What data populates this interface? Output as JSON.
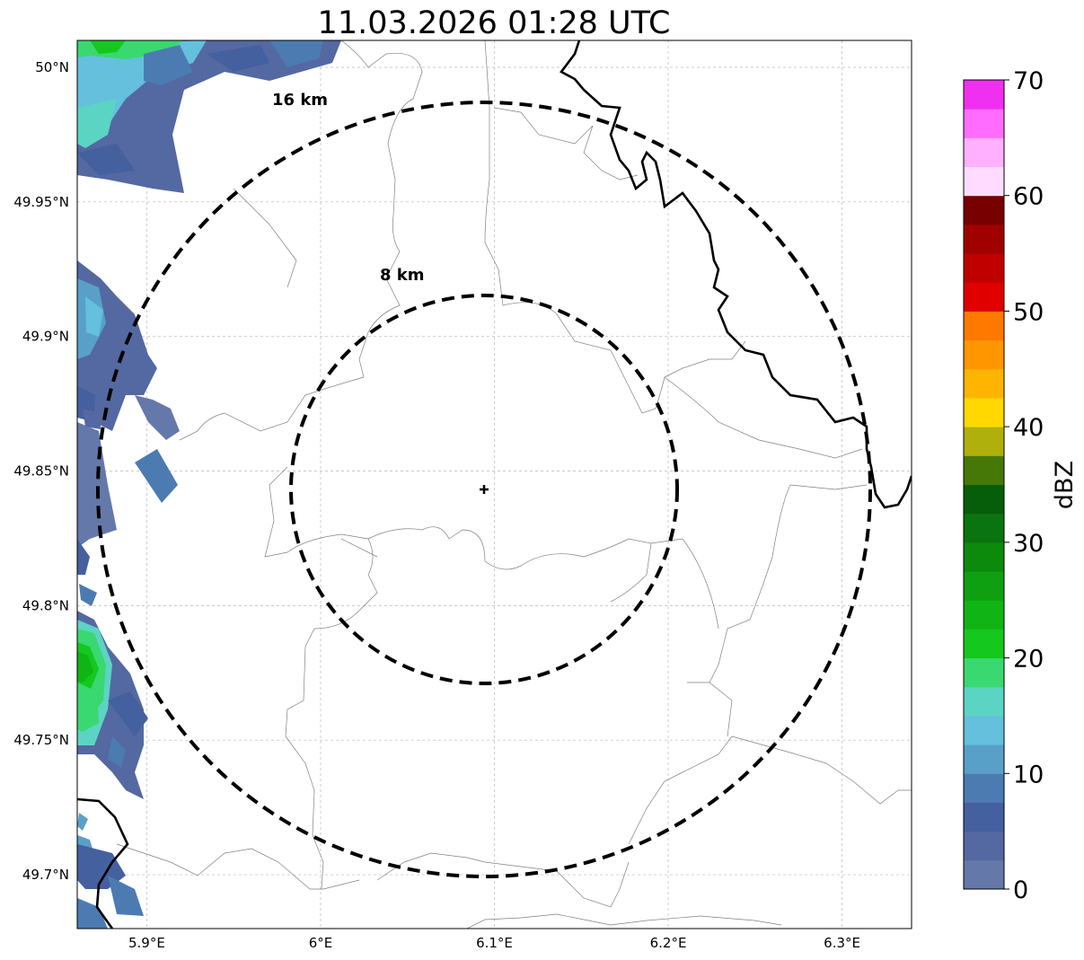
{
  "map": {
    "title": "11.03.2026 01:28 UTC",
    "lon_ticks": [
      "5.9°E",
      "6°E",
      "6.1°E",
      "6.2°E",
      "6.3°E"
    ],
    "lat_ticks": [
      "50°N",
      "49.95°N",
      "49.9°N",
      "49.85°N",
      "49.8°N",
      "49.75°N",
      "49.7°N"
    ],
    "extent": {
      "lon": [
        5.86,
        6.34
      ],
      "lat": [
        49.68,
        50.01
      ]
    },
    "radar_site": {
      "lon": 6.095,
      "lat": 49.843
    },
    "rings": [
      {
        "label": "8 km",
        "radius_km": 8
      },
      {
        "label": "16 km",
        "radius_km": 16
      }
    ],
    "grid": true
  },
  "colorbar": {
    "label": "dBZ",
    "ticks": [
      "0",
      "10",
      "20",
      "30",
      "40",
      "50",
      "60",
      "70"
    ],
    "range": [
      0,
      70
    ],
    "step": 2.5,
    "colors": [
      "#6478aa",
      "#5468a2",
      "#44609e",
      "#4c7bb2",
      "#58a0c8",
      "#64c0dc",
      "#5cd4c4",
      "#3ad870",
      "#14c81e",
      "#10b414",
      "#0ea010",
      "#0c8a0c",
      "#0a7410",
      "#065e0a",
      "#467808",
      "#b0b00c",
      "#ffd800",
      "#ffb400",
      "#ff9600",
      "#ff7800",
      "#e00000",
      "#c00000",
      "#a00000",
      "#780000",
      "#ffdcff",
      "#ffb0ff",
      "#ff6cff",
      "#f030f0"
    ]
  }
}
